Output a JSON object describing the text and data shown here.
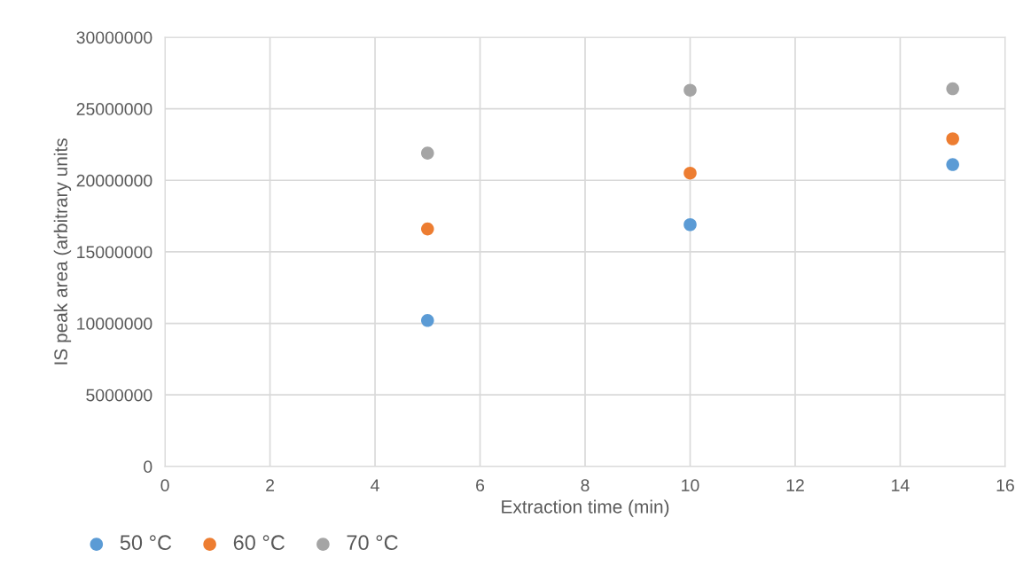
{
  "chart_data": {
    "type": "scatter",
    "xlabel": "Extraction time (min)",
    "ylabel": "IS peak area (arbitrary units",
    "x": [
      5,
      10,
      15
    ],
    "series": [
      {
        "name": "50 °C",
        "color": "#5b9bd5",
        "values": [
          10200000,
          16900000,
          21100000
        ]
      },
      {
        "name": "60 °C",
        "color": "#ed7d31",
        "values": [
          16600000,
          20500000,
          22900000
        ]
      },
      {
        "name": "70 °C",
        "color": "#a5a5a5",
        "values": [
          21900000,
          26300000,
          26400000
        ]
      }
    ],
    "xlim": [
      0,
      16
    ],
    "xticks": [
      0,
      2,
      4,
      6,
      8,
      10,
      12,
      14,
      16
    ],
    "ylim": [
      0,
      30000000
    ],
    "yticks": [
      0,
      5000000,
      10000000,
      15000000,
      20000000,
      25000000,
      30000000
    ],
    "grid": true,
    "legend": "bottom left",
    "marker": "circle"
  }
}
